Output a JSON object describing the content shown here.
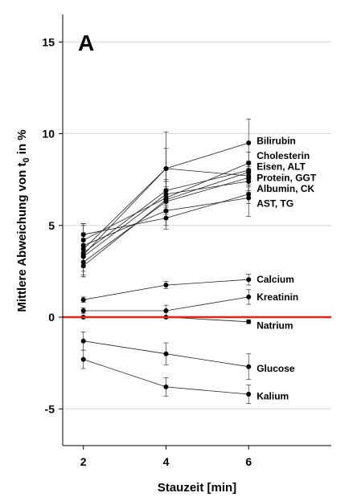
{
  "chart_data": {
    "type": "line",
    "panel_label": "A",
    "xlabel": "Stauzeit [min]",
    "ylabel_main": "Mittlere Abweichung von t",
    "ylabel_sub": "0",
    "ylabel_tail": " in %",
    "xlim": [
      1.5,
      8
    ],
    "ylim": [
      -7,
      16.5
    ],
    "x_ticks": [
      2,
      4,
      6
    ],
    "y_ticks": [
      -5,
      0,
      5,
      10,
      15
    ],
    "grid": "horizontal",
    "reference_line": {
      "y": 0,
      "color": "#e8211b"
    },
    "x": [
      2,
      4,
      6
    ],
    "series": [
      {
        "values": [
          3.7,
          8.1,
          9.5
        ],
        "err": [
          1.4,
          2.0,
          1.3
        ]
      },
      {
        "values": [
          3.4,
          8.1,
          7.7
        ],
        "err": [
          1.2,
          1.1,
          0.8
        ]
      },
      {
        "values": [
          4.2,
          6.5,
          8.4
        ],
        "err": [
          0.9,
          0.9,
          0.6
        ]
      },
      {
        "values": [
          3.5,
          6.9,
          8.0
        ],
        "err": [
          0.8,
          0.6,
          0.5
        ]
      },
      {
        "values": [
          2.8,
          6.4,
          7.9
        ],
        "err": [
          0.6,
          0.7,
          0.5
        ]
      },
      {
        "values": [
          3.0,
          6.3,
          7.6
        ],
        "err": [
          0.5,
          0.6,
          0.5
        ]
      },
      {
        "values": [
          3.3,
          6.7,
          7.4
        ],
        "err": [
          0.5,
          0.7,
          0.6
        ]
      },
      {
        "values": [
          4.5,
          5.4,
          6.7
        ],
        "err": [
          0.5,
          0.6,
          0.5
        ]
      },
      {
        "values": [
          3.9,
          5.8,
          6.5
        ],
        "err": [
          0.6,
          0.8,
          1.0
        ]
      },
      {
        "values": [
          0.95,
          1.75,
          2.05
        ],
        "err": [
          0.15,
          0.2,
          0.3
        ]
      },
      {
        "values": [
          0.35,
          0.35,
          1.1
        ],
        "err": [
          0.15,
          0.3,
          0.4
        ]
      },
      {
        "values": [
          0.0,
          0.0,
          -0.25
        ],
        "err": [
          0.05,
          0.05,
          0.1
        ]
      },
      {
        "values": [
          -1.3,
          -2.0,
          -2.7
        ],
        "err": [
          0.5,
          0.6,
          0.7
        ]
      },
      {
        "values": [
          -2.3,
          -3.8,
          -4.2
        ],
        "err": [
          0.5,
          0.5,
          0.5
        ]
      }
    ],
    "annotations": [
      {
        "text": "Bilirubin",
        "y": 9.6
      },
      {
        "text": "Cholesterin",
        "y": 8.8
      },
      {
        "text": "Eisen, ALT",
        "y": 8.2
      },
      {
        "text": "Protein, GGT",
        "y": 7.6
      },
      {
        "text": "Albumin, CK",
        "y": 7.0
      },
      {
        "text": "AST, TG",
        "y": 6.2
      },
      {
        "text": "Calcium",
        "y": 2.05
      },
      {
        "text": "Kreatinin",
        "y": 1.1
      },
      {
        "text": "Natrium",
        "y": -0.45
      },
      {
        "text": "Glucose",
        "y": -2.8
      },
      {
        "text": "Kalium",
        "y": -4.3
      }
    ]
  }
}
